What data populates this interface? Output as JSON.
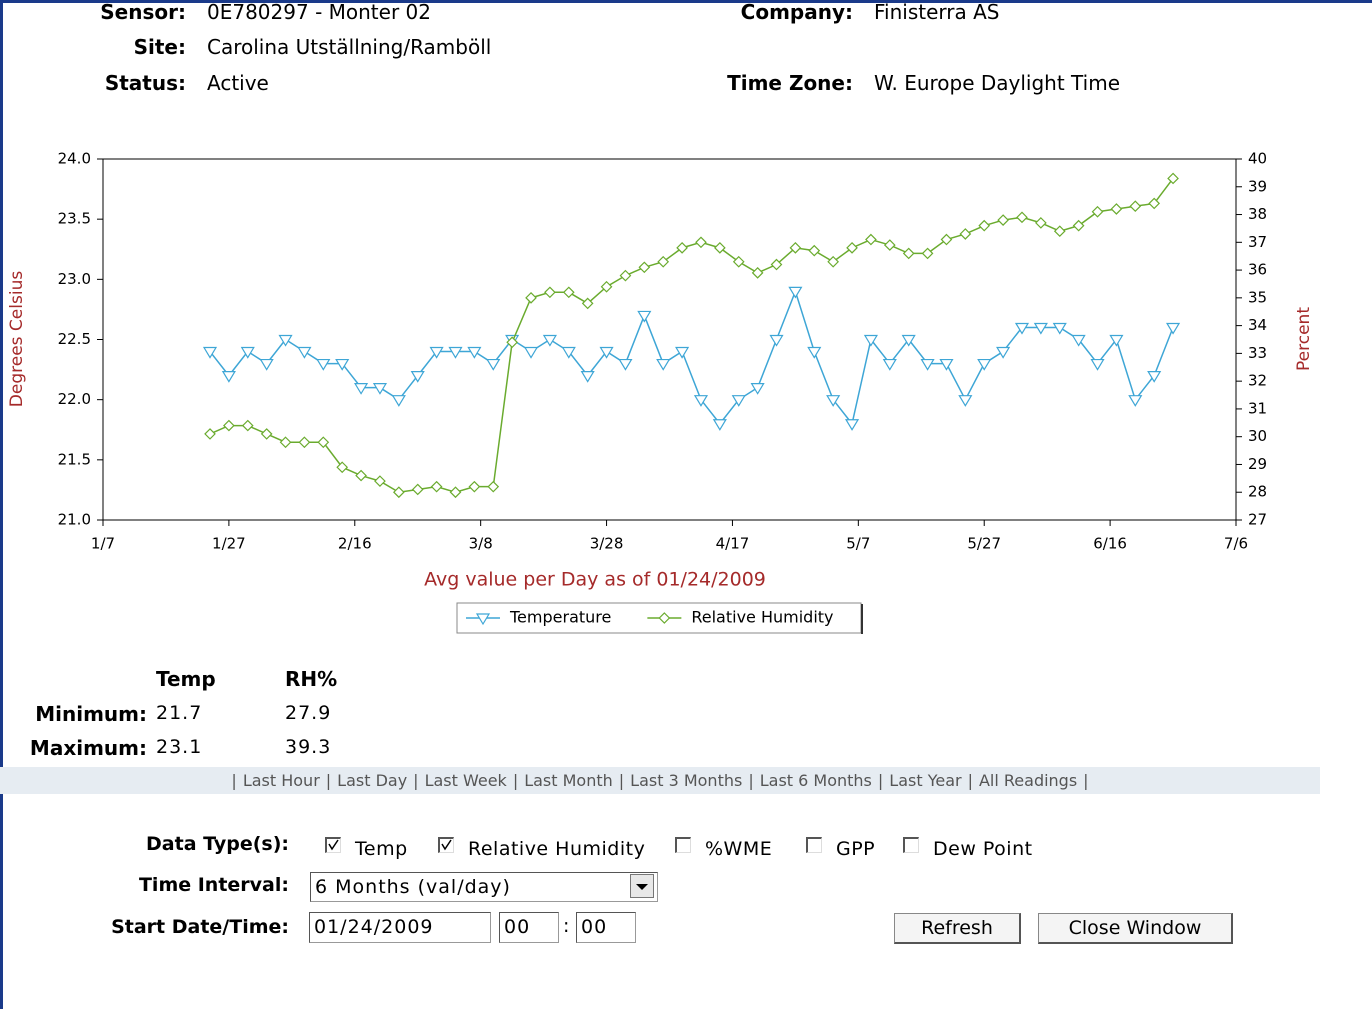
{
  "header": {
    "sensor_label": "Sensor:",
    "sensor": "0E780297 - Monter 02",
    "site_label": "Site:",
    "site": "Carolina Utställning/Ramböll",
    "status_label": "Status:",
    "status": "Active",
    "company_label": "Company:",
    "company": "Finisterra AS",
    "timezone_label": "Time Zone:",
    "timezone": "W. Europe Daylight Time"
  },
  "chart_data": {
    "type": "line",
    "xlabel": "Avg value per Day as of 01/24/2009",
    "ylabel": "Degrees Celsius",
    "y2label": "Percent",
    "x": [
      "1/24",
      "1/27",
      "1/30",
      "2/2",
      "2/5",
      "2/8",
      "2/11",
      "2/14",
      "2/17",
      "2/20",
      "2/23",
      "2/26",
      "3/1",
      "3/4",
      "3/7",
      "3/10",
      "3/13",
      "3/16",
      "3/19",
      "3/22",
      "3/25",
      "3/28",
      "3/31",
      "4/3",
      "4/6",
      "4/9",
      "4/12",
      "4/15",
      "4/18",
      "4/21",
      "4/24",
      "4/27",
      "4/30",
      "5/3",
      "5/6",
      "5/9",
      "5/12",
      "5/15",
      "5/18",
      "5/21",
      "5/24",
      "5/27",
      "5/30",
      "6/2",
      "6/5",
      "6/8",
      "6/11",
      "6/14",
      "6/17",
      "6/20",
      "6/23",
      "6/26"
    ],
    "xlim": [
      "1/7",
      "7/6"
    ],
    "xticks": [
      "1/7",
      "1/27",
      "2/16",
      "3/8",
      "3/28",
      "4/17",
      "5/7",
      "5/27",
      "6/16",
      "7/6"
    ],
    "ylim": [
      21,
      24
    ],
    "yticks": [
      {
        "value": 21,
        "label": "21.0"
      },
      21.5,
      {
        "value": 22,
        "label": "22.0"
      },
      22.5,
      {
        "value": 23,
        "label": "23.0"
      },
      23.5,
      {
        "value": 24,
        "label": "24.0"
      }
    ],
    "y2lim": [
      27,
      40
    ],
    "y2ticks": [
      27,
      28,
      29,
      30,
      31,
      32,
      33,
      34,
      35,
      36,
      37,
      38,
      39,
      40
    ],
    "legend": "bottom",
    "series": [
      {
        "name": "Temperature",
        "color": "#3ea6d6",
        "marker": "triangle-down",
        "values": [
          22.4,
          22.2,
          22.4,
          22.3,
          22.5,
          22.4,
          22.3,
          22.3,
          22.1,
          22.1,
          22.0,
          22.2,
          22.4,
          22.4,
          22.4,
          22.3,
          22.5,
          22.4,
          22.5,
          22.4,
          22.2,
          22.4,
          22.3,
          22.7,
          22.3,
          22.4,
          22.0,
          21.8,
          22.0,
          22.1,
          22.5,
          22.9,
          22.4,
          22.0,
          21.8,
          22.5,
          22.3,
          22.5,
          22.3,
          22.3,
          22.0,
          22.3,
          22.4,
          22.6,
          22.6,
          22.6,
          22.5,
          22.3,
          22.5,
          22.0,
          22.2,
          22.6
        ]
      },
      {
        "name": "Relative Humidity",
        "color": "#6aab2e",
        "marker": "diamond",
        "axis": "y2",
        "values": [
          30.1,
          30.4,
          30.4,
          30.1,
          29.8,
          29.8,
          29.8,
          28.9,
          28.6,
          28.4,
          28.0,
          28.1,
          28.2,
          28.0,
          28.2,
          28.2,
          33.4,
          35.0,
          35.2,
          35.2,
          34.8,
          35.4,
          35.8,
          36.1,
          36.3,
          36.8,
          37.0,
          36.8,
          36.3,
          35.9,
          36.2,
          36.8,
          36.7,
          36.3,
          36.8,
          37.1,
          36.9,
          36.6,
          36.6,
          37.1,
          37.3,
          37.6,
          37.8,
          37.9,
          37.7,
          37.4,
          37.6,
          38.1,
          38.2,
          38.3,
          38.4,
          39.3
        ]
      }
    ]
  },
  "stats": {
    "headers": [
      "Temp",
      "RH%"
    ],
    "rows": [
      {
        "label": "Minimum:",
        "values": [
          21.7,
          27.9
        ]
      },
      {
        "label": "Maximum:",
        "values": [
          23.1,
          39.3
        ]
      }
    ]
  },
  "links": {
    "separator": "|",
    "items": [
      "Last Hour",
      "Last Day",
      "Last Week",
      "Last Month",
      "Last 3 Months",
      "Last 6 Months",
      "Last Year",
      "All Readings"
    ]
  },
  "form": {
    "data_types_label": "Data Type(s):",
    "data_types": [
      {
        "label": "Temp",
        "checked": true
      },
      {
        "label": "Relative Humidity",
        "checked": true
      },
      {
        "label": "%WME",
        "checked": false
      },
      {
        "label": "GPP",
        "checked": false
      },
      {
        "label": "Dew Point",
        "checked": false
      }
    ],
    "time_interval_label": "Time Interval:",
    "time_interval": "6 Months (val/day)",
    "start_label": "Start Date/Time:",
    "start_date": "01/24/2009",
    "hour": "00",
    "colon": ":",
    "minute": "00",
    "refresh": "Refresh",
    "close": "Close Window"
  }
}
